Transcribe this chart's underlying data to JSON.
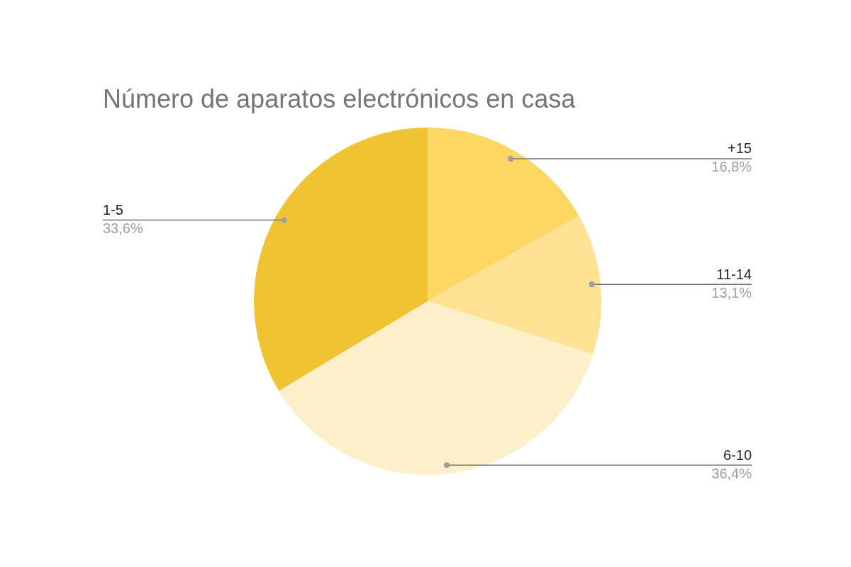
{
  "chart_data": {
    "type": "pie",
    "title": "Número de aparatos electrónicos en casa",
    "categories": [
      "+15",
      "11-14",
      "6-10",
      "1-5"
    ],
    "values": [
      16.8,
      13.1,
      36.4,
      33.6
    ],
    "value_labels": [
      "16,8%",
      "13,1%",
      "36,4%",
      "33,6%"
    ],
    "colors": [
      "#fdd663",
      "#fde293",
      "#feefcb",
      "#f1c232"
    ],
    "legend": false
  }
}
